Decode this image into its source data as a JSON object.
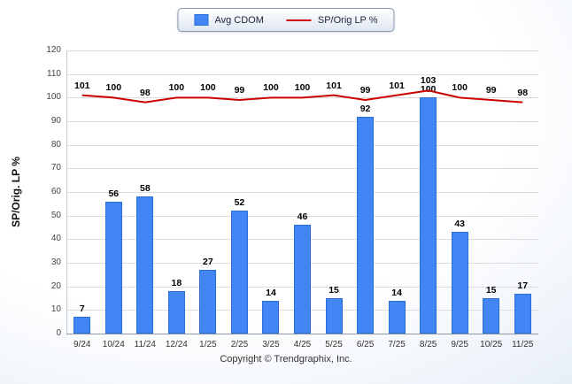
{
  "legend": {
    "bar_label": "Avg CDOM",
    "line_label": "SP/Orig LP %"
  },
  "y_axis_title": "SP/Orig. LP %",
  "footer": {
    "copyright": "Copyright © Trendgraphix, Inc."
  },
  "colors": {
    "bar": "#4285f4",
    "bar_border": "#2a6fd6",
    "line": "#cc0000",
    "grid": "#dcdcdc",
    "baseline": "#8f98a8",
    "axis": "#c0c8d4",
    "value_label": "#000000",
    "tick_label": "#444444"
  },
  "chart_data": {
    "type": "bar+line",
    "categories": [
      "9/24",
      "10/24",
      "11/24",
      "12/24",
      "1/25",
      "2/25",
      "3/25",
      "4/25",
      "5/25",
      "6/25",
      "7/25",
      "8/25",
      "9/25",
      "10/25",
      "11/25"
    ],
    "series": [
      {
        "name": "Avg CDOM",
        "type": "bar",
        "values": [
          7,
          56,
          58,
          18,
          27,
          52,
          14,
          46,
          15,
          92,
          14,
          100,
          43,
          15,
          17
        ]
      },
      {
        "name": "SP/Orig LP %",
        "type": "line",
        "values": [
          101,
          100,
          98,
          100,
          100,
          99,
          100,
          100,
          101,
          99,
          101,
          103,
          100,
          99,
          98
        ]
      }
    ],
    "title": "",
    "xlabel": "",
    "ylabel": "SP/Orig. LP %",
    "ylim": [
      0,
      120
    ],
    "ytick_step": 10,
    "grid": true,
    "legend_position": "top"
  }
}
